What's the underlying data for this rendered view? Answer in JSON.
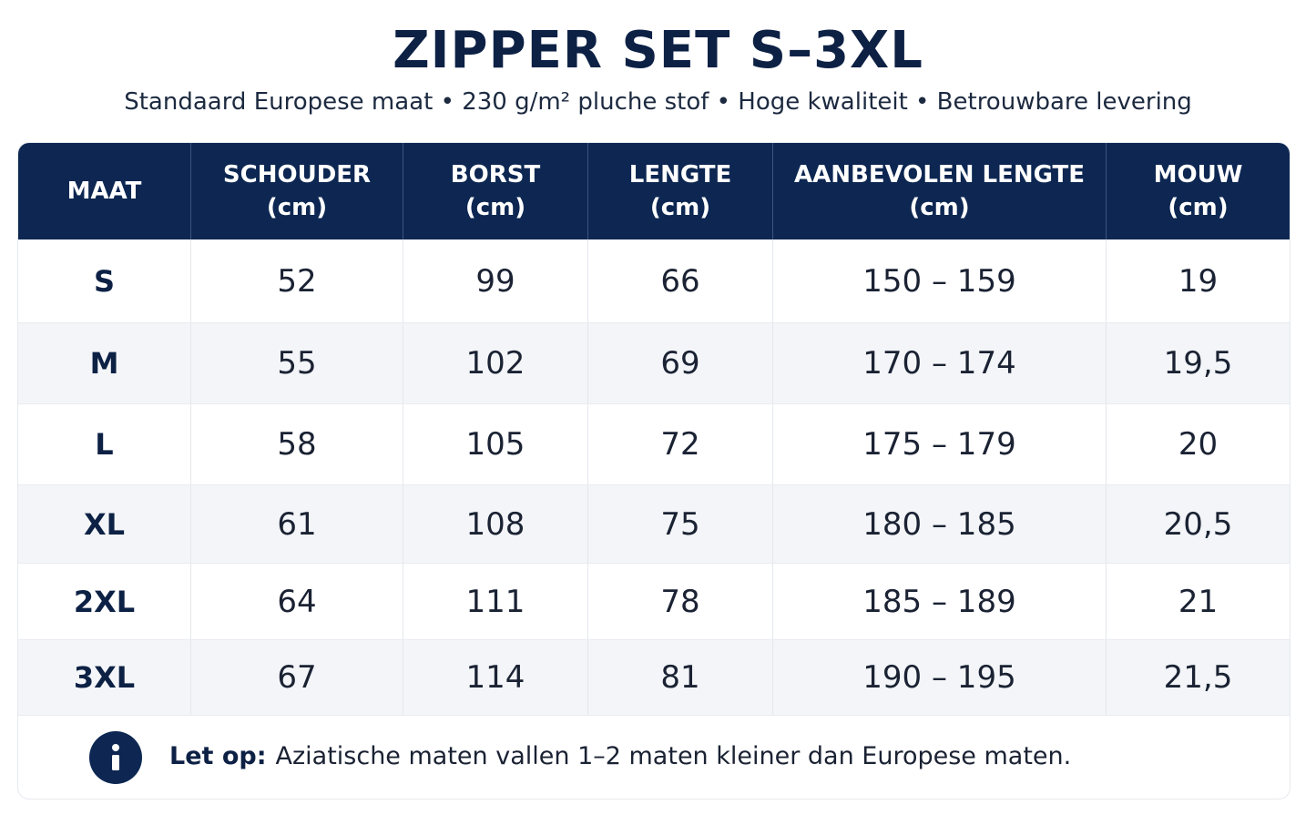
{
  "title": "ZIPPER SET S–3XL",
  "subtitle": "Standaard Europese maat • 230 g/m² pluche stof • Hoge kwaliteit • Betrouwbare levering",
  "colors": {
    "header_bg": "#0d2752",
    "title": "#0d2145",
    "row_alt": "#f3f5f8"
  },
  "table": {
    "headers": [
      {
        "line1": "MAAT",
        "line2": ""
      },
      {
        "line1": "SCHOUDER",
        "line2": "(cm)"
      },
      {
        "line1": "BORST",
        "line2": "(cm)"
      },
      {
        "line1": "LENGTE",
        "line2": "(cm)"
      },
      {
        "line1": "AANBEVOLEN LENGTE",
        "line2": "(cm)"
      },
      {
        "line1": "MOUW",
        "line2": "(cm)"
      }
    ],
    "rows": [
      {
        "maat": "S",
        "schouder": "52",
        "borst": "99",
        "lengte": "66",
        "aanbevolen": "150 – 159",
        "mouw": "19"
      },
      {
        "maat": "M",
        "schouder": "55",
        "borst": "102",
        "lengte": "69",
        "aanbevolen": "170 – 174",
        "mouw": "19,5"
      },
      {
        "maat": "L",
        "schouder": "58",
        "borst": "105",
        "lengte": "72",
        "aanbevolen": "175 – 179",
        "mouw": "20"
      },
      {
        "maat": "XL",
        "schouder": "61",
        "borst": "108",
        "lengte": "75",
        "aanbevolen": "180 – 185",
        "mouw": "20,5"
      },
      {
        "maat": "2XL",
        "schouder": "64",
        "borst": "111",
        "lengte": "78",
        "aanbevolen": "185 – 189",
        "mouw": "21"
      },
      {
        "maat": "3XL",
        "schouder": "67",
        "borst": "114",
        "lengte": "81",
        "aanbevolen": "190 – 195",
        "mouw": "21,5"
      }
    ]
  },
  "note": {
    "icon": "info-icon",
    "label": "Let op:",
    "text": "Aziatische maten vallen 1–2 maten kleiner dan Europese maten."
  }
}
